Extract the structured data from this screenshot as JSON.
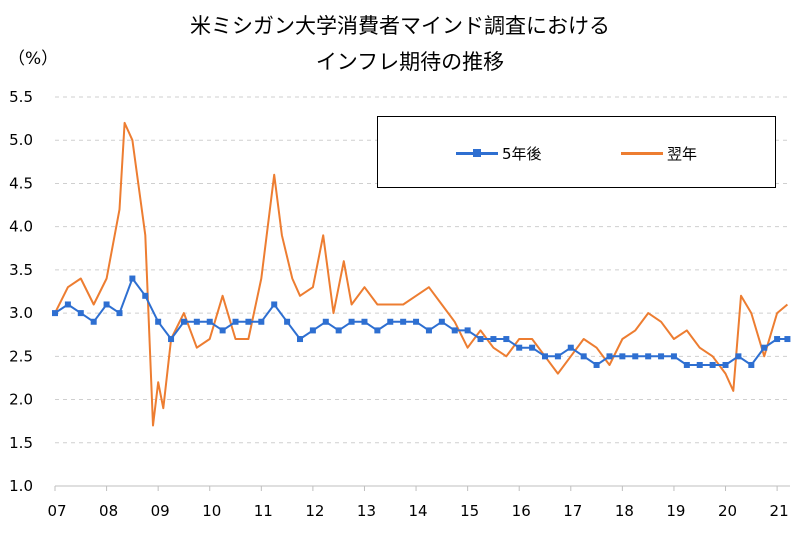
{
  "chart_data": {
    "type": "line",
    "title_line1": "米ミシガン大学消費者マインド調査における",
    "title_line2": "インフレ期待の推移",
    "y_unit": "（%）",
    "ylim": [
      1.0,
      5.5
    ],
    "y_ticks": [
      "1.0",
      "1.5",
      "2.0",
      "2.5",
      "3.0",
      "3.5",
      "4.0",
      "4.5",
      "5.0",
      "5.5"
    ],
    "x_ticks": [
      "07",
      "08",
      "09",
      "10",
      "11",
      "12",
      "13",
      "14",
      "15",
      "16",
      "17",
      "18",
      "19",
      "20",
      "21"
    ],
    "grid": "horizontal-dashed",
    "legend_position": "top-right",
    "series": [
      {
        "name": "5年後",
        "color": "#2e6fd1",
        "marker": "square",
        "x": [
          2007.0,
          2007.25,
          2007.5,
          2007.75,
          2008.0,
          2008.25,
          2008.5,
          2008.75,
          2009.0,
          2009.25,
          2009.5,
          2009.75,
          2010.0,
          2010.25,
          2010.5,
          2010.75,
          2011.0,
          2011.25,
          2011.5,
          2011.75,
          2012.0,
          2012.25,
          2012.5,
          2012.75,
          2013.0,
          2013.25,
          2013.5,
          2013.75,
          2014.0,
          2014.25,
          2014.5,
          2014.75,
          2015.0,
          2015.25,
          2015.5,
          2015.75,
          2016.0,
          2016.25,
          2016.5,
          2016.75,
          2017.0,
          2017.25,
          2017.5,
          2017.75,
          2018.0,
          2018.25,
          2018.5,
          2018.75,
          2019.0,
          2019.25,
          2019.5,
          2019.75,
          2020.0,
          2020.25,
          2020.5,
          2020.75,
          2021.0,
          2021.2
        ],
        "y": [
          3.0,
          3.1,
          3.0,
          2.9,
          3.1,
          3.0,
          3.4,
          3.2,
          2.9,
          2.7,
          2.9,
          2.9,
          2.9,
          2.8,
          2.9,
          2.9,
          2.9,
          3.1,
          2.9,
          2.7,
          2.8,
          2.9,
          2.8,
          2.9,
          2.9,
          2.8,
          2.9,
          2.9,
          2.9,
          2.8,
          2.9,
          2.8,
          2.8,
          2.7,
          2.7,
          2.7,
          2.6,
          2.6,
          2.5,
          2.5,
          2.6,
          2.5,
          2.4,
          2.5,
          2.5,
          2.5,
          2.5,
          2.5,
          2.5,
          2.4,
          2.4,
          2.4,
          2.4,
          2.5,
          2.4,
          2.6,
          2.7,
          2.7
        ]
      },
      {
        "name": "翌年",
        "color": "#ed7d31",
        "x": [
          2007.0,
          2007.25,
          2007.5,
          2007.75,
          2008.0,
          2008.25,
          2008.35,
          2008.5,
          2008.75,
          2008.9,
          2009.0,
          2009.1,
          2009.25,
          2009.5,
          2009.75,
          2010.0,
          2010.25,
          2010.5,
          2010.75,
          2011.0,
          2011.25,
          2011.4,
          2011.6,
          2011.75,
          2012.0,
          2012.2,
          2012.4,
          2012.6,
          2012.75,
          2013.0,
          2013.25,
          2013.5,
          2013.75,
          2014.0,
          2014.25,
          2014.5,
          2014.75,
          2015.0,
          2015.25,
          2015.5,
          2015.75,
          2016.0,
          2016.25,
          2016.5,
          2016.75,
          2017.0,
          2017.25,
          2017.5,
          2017.75,
          2018.0,
          2018.25,
          2018.5,
          2018.75,
          2019.0,
          2019.25,
          2019.5,
          2019.75,
          2020.0,
          2020.15,
          2020.3,
          2020.5,
          2020.75,
          2021.0,
          2021.2
        ],
        "y": [
          3.0,
          3.3,
          3.4,
          3.1,
          3.4,
          4.2,
          5.2,
          5.0,
          3.9,
          1.7,
          2.2,
          1.9,
          2.7,
          3.0,
          2.6,
          2.7,
          3.2,
          2.7,
          2.7,
          3.4,
          4.6,
          3.9,
          3.4,
          3.2,
          3.3,
          3.9,
          3.0,
          3.6,
          3.1,
          3.3,
          3.1,
          3.1,
          3.1,
          3.2,
          3.3,
          3.1,
          2.9,
          2.6,
          2.8,
          2.6,
          2.5,
          2.7,
          2.7,
          2.5,
          2.3,
          2.5,
          2.7,
          2.6,
          2.4,
          2.7,
          2.8,
          3.0,
          2.9,
          2.7,
          2.8,
          2.6,
          2.5,
          2.3,
          2.1,
          3.2,
          3.0,
          2.5,
          3.0,
          3.1
        ]
      }
    ]
  }
}
